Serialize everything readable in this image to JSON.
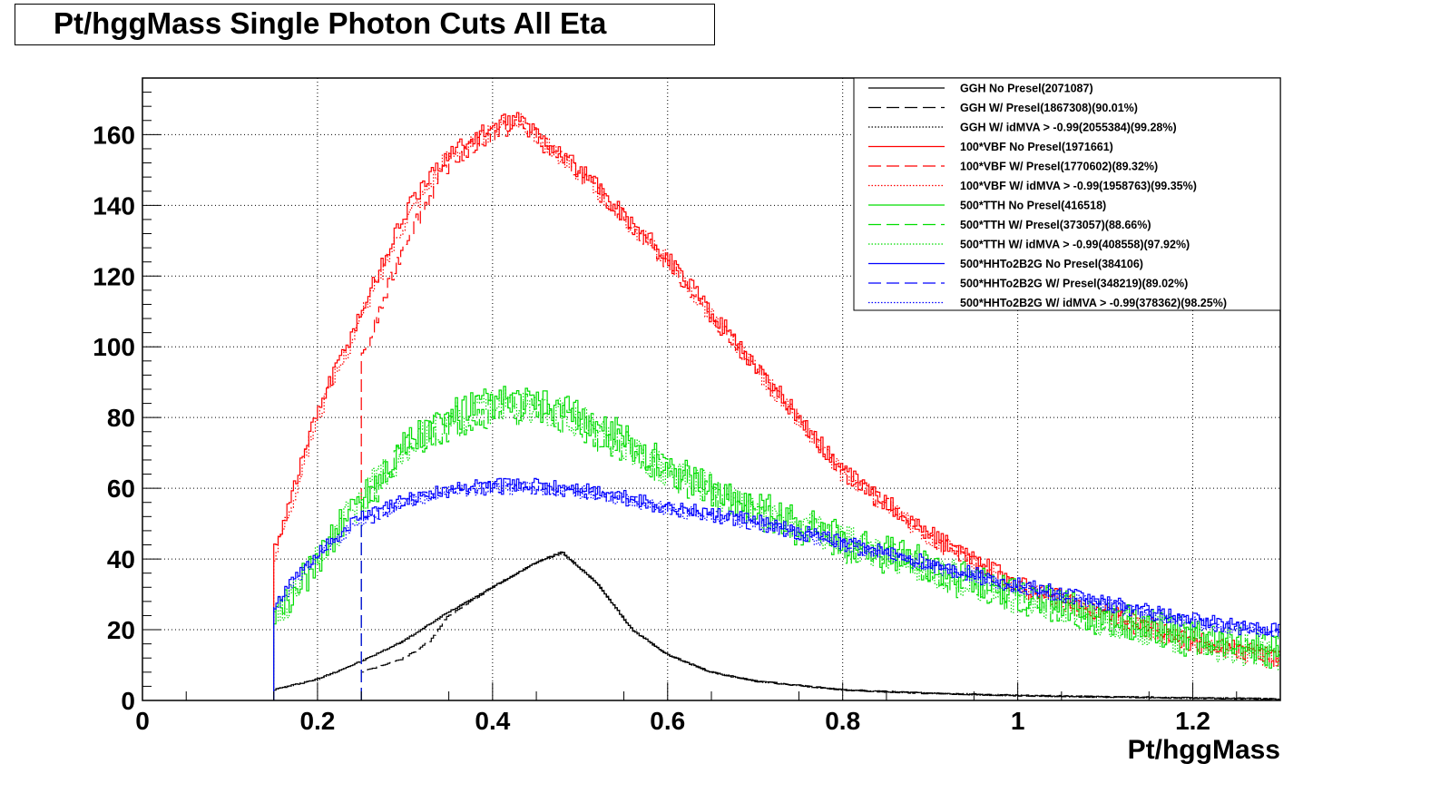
{
  "chart_data": {
    "type": "line",
    "title": "Pt/hggMass Single Photon Cuts All Eta",
    "xlabel": "Pt/hggMass",
    "ylabel": "",
    "xlim": [
      0,
      1.3
    ],
    "ylim": [
      0,
      176
    ],
    "grid": true,
    "legend_position": "top-right",
    "x_ticks": [
      {
        "value": 0,
        "label": "0"
      },
      {
        "value": 0.2,
        "label": "0.2"
      },
      {
        "value": 0.4,
        "label": "0.4"
      },
      {
        "value": 0.6,
        "label": "0.6"
      },
      {
        "value": 0.8,
        "label": "0.8"
      },
      {
        "value": 1.0,
        "label": "1"
      },
      {
        "value": 1.2,
        "label": "1.2"
      }
    ],
    "y_ticks": [
      {
        "value": 0,
        "label": "0"
      },
      {
        "value": 20,
        "label": "20"
      },
      {
        "value": 40,
        "label": "40"
      },
      {
        "value": 60,
        "label": "60"
      },
      {
        "value": 80,
        "label": "80"
      },
      {
        "value": 100,
        "label": "100"
      },
      {
        "value": 120,
        "label": "120"
      },
      {
        "value": 140,
        "label": "140"
      },
      {
        "value": 160,
        "label": "160"
      }
    ],
    "series": [
      {
        "name": "GGH No Presel(2071087)",
        "color": "#000000",
        "style": "solid",
        "noise": 0.2,
        "x": [
          0.15,
          0.2,
          0.25,
          0.3,
          0.35,
          0.4,
          0.45,
          0.48,
          0.52,
          0.56,
          0.6,
          0.65,
          0.7,
          0.8,
          0.9,
          1.0,
          1.1,
          1.2,
          1.3
        ],
        "y": [
          3,
          6,
          11,
          17,
          25,
          32,
          39,
          42,
          33,
          20,
          13,
          8,
          5.5,
          3,
          2,
          1.4,
          1,
          0.7,
          0.4
        ]
      },
      {
        "name": "GGH W/ Presel(1867308)(90.01%)",
        "color": "#000000",
        "style": "longdash",
        "noise": 0.2,
        "x": [
          0.25,
          0.3,
          0.33,
          0.35,
          0.4,
          0.45,
          0.48,
          0.52,
          0.56,
          0.6,
          0.65,
          0.7,
          0.8,
          0.9,
          1.0,
          1.1,
          1.2,
          1.3
        ],
        "y": [
          8,
          12,
          17,
          24,
          32,
          39,
          42,
          33,
          20,
          13,
          8,
          5.5,
          3,
          2,
          1.4,
          1,
          0.7,
          0.4
        ]
      },
      {
        "name": "GGH W/ idMVA > -0.99(2055384)(99.28%)",
        "color": "#000000",
        "style": "dotted",
        "noise": 0.2,
        "x": [
          0.15,
          0.2,
          0.25,
          0.3,
          0.35,
          0.4,
          0.45,
          0.48,
          0.52,
          0.56,
          0.6,
          0.65,
          0.7,
          0.8,
          0.9,
          1.0,
          1.1,
          1.2,
          1.3
        ],
        "y": [
          3,
          6,
          11,
          17,
          25,
          32,
          39,
          41.5,
          33,
          20,
          13,
          8,
          5.5,
          3,
          2,
          1.4,
          1,
          0.7,
          0.4
        ]
      },
      {
        "name": "100*VBF No Presel(1971661)",
        "color": "#ff0000",
        "style": "solid",
        "noise": 2.5,
        "x": [
          0.15,
          0.2,
          0.25,
          0.3,
          0.35,
          0.4,
          0.43,
          0.5,
          0.6,
          0.7,
          0.8,
          0.9,
          1.0,
          1.1,
          1.2,
          1.3
        ],
        "y": [
          42,
          82,
          110,
          138,
          155,
          162,
          165,
          150,
          125,
          95,
          65,
          47,
          33,
          25,
          17,
          12
        ]
      },
      {
        "name": "100*VBF W/ Presel(1770602)(89.32%)",
        "color": "#ff0000",
        "style": "longdash",
        "noise": 2.5,
        "x": [
          0.25,
          0.3,
          0.35,
          0.4,
          0.43,
          0.5,
          0.6,
          0.7,
          0.8,
          0.9,
          1.0,
          1.1,
          1.2,
          1.3
        ],
        "y": [
          95,
          130,
          152,
          160,
          163,
          149,
          124,
          94,
          64,
          46,
          32,
          24,
          16,
          11
        ]
      },
      {
        "name": "100*VBF W/ idMVA > -0.99(1958763)(99.35%)",
        "color": "#ff0000",
        "style": "dotted",
        "noise": 2.5,
        "x": [
          0.15,
          0.2,
          0.25,
          0.3,
          0.35,
          0.4,
          0.43,
          0.5,
          0.6,
          0.7,
          0.8,
          0.9,
          1.0,
          1.1,
          1.2,
          1.3
        ],
        "y": [
          40,
          80,
          108,
          136,
          154,
          161,
          164,
          149,
          124,
          94,
          64,
          46,
          32,
          24,
          16,
          11
        ]
      },
      {
        "name": "500*TTH No Presel(416518)",
        "color": "#00dd00",
        "style": "solid",
        "noise": 5,
        "x": [
          0.15,
          0.2,
          0.25,
          0.3,
          0.35,
          0.4,
          0.45,
          0.5,
          0.55,
          0.6,
          0.7,
          0.8,
          0.9,
          1.0,
          1.1,
          1.2,
          1.3
        ],
        "y": [
          22,
          40,
          58,
          72,
          80,
          84,
          84,
          80,
          74,
          66,
          55,
          46,
          38,
          30,
          24,
          18,
          14
        ]
      },
      {
        "name": "500*TTH W/ Presel(373057)(88.66%)",
        "color": "#00dd00",
        "style": "longdash",
        "noise": 5,
        "x": [
          0.25,
          0.3,
          0.35,
          0.4,
          0.45,
          0.5,
          0.55,
          0.6,
          0.7,
          0.8,
          0.9,
          1.0,
          1.1,
          1.2,
          1.3
        ],
        "y": [
          55,
          70,
          78,
          82,
          82,
          78,
          72,
          64,
          53,
          44,
          36,
          29,
          23,
          17,
          13
        ]
      },
      {
        "name": "500*TTH W/ idMVA > -0.99(408558)(97.92%)",
        "color": "#00dd00",
        "style": "dotted",
        "noise": 5,
        "x": [
          0.15,
          0.2,
          0.25,
          0.3,
          0.35,
          0.4,
          0.45,
          0.5,
          0.55,
          0.6,
          0.7,
          0.8,
          0.9,
          1.0,
          1.1,
          1.2,
          1.3
        ],
        "y": [
          21,
          39,
          57,
          71,
          79,
          83,
          83,
          79,
          73,
          65,
          54,
          45,
          37,
          29,
          23,
          17,
          13
        ]
      },
      {
        "name": "500*HHTo2B2G No Presel(384106)",
        "color": "#0000ff",
        "style": "solid",
        "noise": 1.8,
        "x": [
          0.15,
          0.2,
          0.25,
          0.3,
          0.35,
          0.4,
          0.45,
          0.5,
          0.55,
          0.6,
          0.7,
          0.8,
          0.9,
          1.0,
          1.1,
          1.2,
          1.3
        ],
        "y": [
          27,
          42,
          52,
          57,
          60,
          61,
          61,
          60,
          58,
          55,
          51,
          45,
          39,
          33,
          28,
          23,
          20
        ]
      },
      {
        "name": "500*HHTo2B2G W/ Presel(348219)(89.02%)",
        "color": "#0000ff",
        "style": "longdash",
        "noise": 1.8,
        "x": [
          0.25,
          0.3,
          0.35,
          0.4,
          0.45,
          0.5,
          0.55,
          0.6,
          0.7,
          0.8,
          0.9,
          1.0,
          1.1,
          1.2,
          1.3
        ],
        "y": [
          50,
          56,
          59,
          60,
          60,
          59,
          57,
          54,
          50,
          44,
          38,
          32,
          27,
          22,
          19
        ]
      },
      {
        "name": "500*HHTo2B2G W/ idMVA > -0.99(378362)(98.25%)",
        "color": "#0000ff",
        "style": "dotted",
        "noise": 1.8,
        "x": [
          0.15,
          0.2,
          0.25,
          0.3,
          0.35,
          0.4,
          0.45,
          0.5,
          0.55,
          0.6,
          0.7,
          0.8,
          0.9,
          1.0,
          1.1,
          1.2,
          1.3
        ],
        "y": [
          26,
          41,
          51,
          56,
          59,
          60,
          60,
          59,
          57,
          54,
          50,
          44,
          38,
          32,
          27,
          22,
          19
        ]
      }
    ]
  }
}
